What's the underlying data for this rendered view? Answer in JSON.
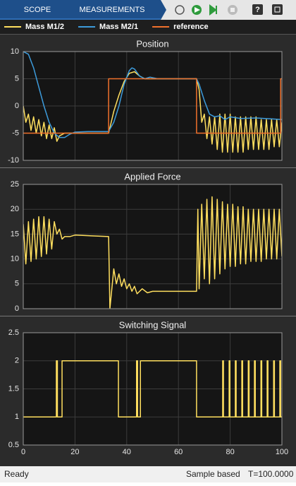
{
  "toolbar": {
    "tabs": [
      "SCOPE",
      "MEASUREMENTS"
    ]
  },
  "status": {
    "left": "Ready",
    "mode": "Sample based",
    "time": "T=100.0000"
  },
  "chart_data": [
    {
      "type": "line",
      "title": "Position",
      "xlim": [
        0,
        100
      ],
      "xticks": [
        0,
        20,
        40,
        60,
        80,
        100
      ],
      "ylim": [
        -10,
        10
      ],
      "yticks": [
        -10,
        -5,
        0,
        5,
        10
      ],
      "grid": true,
      "series": [
        {
          "name": "Mass M1/2",
          "color": "#ffdf5f",
          "x": [
            0,
            1,
            2,
            3,
            4,
            5,
            6,
            7,
            8,
            9,
            10,
            11,
            12,
            13,
            14,
            16,
            33,
            35,
            37,
            39,
            41,
            43,
            45,
            47,
            67,
            68,
            69,
            70,
            71,
            72,
            73,
            74,
            75,
            76,
            77,
            78,
            79,
            80,
            81,
            82,
            83,
            84,
            85,
            86,
            87,
            88,
            89,
            90,
            91,
            92,
            93,
            94,
            95,
            96,
            97,
            98,
            99,
            100
          ],
          "values": [
            0,
            -3,
            -1.5,
            -4.5,
            -2,
            -5,
            -2.5,
            -5.5,
            -3,
            -6,
            -3.5,
            -6,
            -4,
            -6.5,
            -5.5,
            -5,
            -5,
            -1,
            2,
            4.5,
            6,
            6.3,
            5.5,
            5,
            5,
            3,
            -3,
            -1.5,
            -6,
            -2,
            -7,
            -2,
            -8,
            -1.5,
            -8.5,
            -1.5,
            -8.5,
            -1.5,
            -8.5,
            -2,
            -8.5,
            -2,
            -8.5,
            -2,
            -8,
            -2,
            -8,
            -2,
            -8,
            -2.5,
            -8,
            -2.5,
            -8,
            -2.5,
            -7.5,
            -2.5,
            -7.5,
            -3
          ]
        },
        {
          "name": "Mass M2/1",
          "color": "#3d9bdb",
          "x": [
            0,
            2,
            4,
            6,
            8,
            10,
            12,
            14,
            16,
            18,
            20,
            25,
            33,
            35,
            37,
            39,
            41,
            42,
            43,
            45,
            47,
            49,
            52,
            67,
            68,
            70,
            72,
            74,
            76,
            78,
            80,
            84,
            90,
            100
          ],
          "values": [
            10,
            9.5,
            7,
            3.5,
            0,
            -3,
            -5,
            -5.8,
            -5.8,
            -5.2,
            -4.8,
            -4.7,
            -4.7,
            -3,
            0,
            4,
            6.5,
            7,
            6.8,
            5.5,
            5,
            5.3,
            5,
            5,
            4,
            1,
            -1.5,
            -2,
            -1.8,
            -2.5,
            -2,
            -2.3,
            -2.2,
            -2.5
          ]
        },
        {
          "name": "reference",
          "color": "#f0712c",
          "x": [
            0,
            33,
            33,
            67,
            67,
            99.5,
            99.5,
            100
          ],
          "values": [
            -5,
            -5,
            5,
            5,
            -5,
            -5,
            5,
            5
          ]
        }
      ]
    },
    {
      "type": "line",
      "title": "Applied Force",
      "xlim": [
        0,
        100
      ],
      "xticks": [
        0,
        20,
        40,
        60,
        80,
        100
      ],
      "ylim": [
        0,
        25
      ],
      "yticks": [
        0,
        5,
        10,
        15,
        20,
        25
      ],
      "grid": true,
      "series": [
        {
          "color": "#ffdf5f",
          "x": [
            0,
            1,
            2,
            3,
            4,
            5,
            6,
            7,
            8,
            9,
            10,
            11,
            12,
            13,
            14,
            15,
            16,
            18,
            20,
            33,
            33.5,
            35,
            36,
            37,
            38,
            39,
            40,
            41,
            42,
            43,
            44,
            46,
            48,
            50,
            67,
            67.5,
            68,
            69,
            70,
            71,
            72,
            73,
            74,
            75,
            76,
            77,
            78,
            79,
            80,
            81,
            82,
            83,
            84,
            85,
            86,
            87,
            88,
            89,
            90,
            91,
            92,
            93,
            94,
            95,
            96,
            97,
            98,
            99,
            100
          ],
          "values": [
            17,
            9,
            17.5,
            9.5,
            18,
            10,
            18.5,
            10.5,
            18.5,
            11,
            18,
            12,
            17.5,
            15,
            16,
            14,
            14.5,
            14.5,
            14.8,
            14.5,
            0,
            8,
            5,
            7,
            4.5,
            6,
            4,
            5,
            3.5,
            4.5,
            3,
            4,
            3.2,
            3.5,
            3.5,
            20,
            4,
            21,
            6,
            22,
            5,
            22.5,
            6,
            22,
            7,
            21.5,
            8,
            21,
            8.5,
            21,
            8.5,
            20.5,
            9,
            20.5,
            9,
            20,
            9.5,
            20,
            9.5,
            20,
            9.5,
            20,
            10,
            20,
            10,
            20,
            10,
            20,
            10.5
          ]
        }
      ]
    },
    {
      "type": "line",
      "title": "Switching Signal",
      "xlim": [
        0,
        100
      ],
      "xticks": [
        0,
        20,
        40,
        60,
        80,
        100
      ],
      "ylim": [
        0.5,
        2.5
      ],
      "yticks": [
        0.5,
        1,
        1.5,
        2,
        2.5
      ],
      "grid": true,
      "series": [
        {
          "color": "#ffdf5f",
          "x": [
            0,
            12.8,
            12.8,
            13.2,
            13.2,
            15,
            15,
            36.8,
            36.8,
            43.8,
            43.8,
            44.2,
            44.2,
            45.3,
            45.3,
            67,
            67,
            77.1,
            77.1,
            77.4,
            77.4,
            79.6,
            79.6,
            79.9,
            79.9,
            82,
            82,
            82.3,
            82.3,
            84.5,
            84.5,
            84.8,
            84.8,
            87,
            87,
            87.3,
            87.3,
            89.4,
            89.4,
            89.7,
            89.7,
            91.9,
            91.9,
            92.2,
            92.2,
            94.3,
            94.3,
            94.6,
            94.6,
            96.8,
            96.8,
            97.1,
            97.1,
            99.2,
            99.2,
            99.5,
            99.5,
            100
          ],
          "values": [
            1,
            1,
            2,
            2,
            1,
            1,
            2,
            2,
            1,
            1,
            2,
            2,
            1,
            1,
            2,
            2,
            1,
            1,
            2,
            2,
            1,
            1,
            2,
            2,
            1,
            1,
            2,
            2,
            1,
            1,
            2,
            2,
            1,
            1,
            2,
            2,
            1,
            1,
            2,
            2,
            1,
            1,
            2,
            2,
            1,
            1,
            2,
            2,
            1,
            1,
            2,
            2,
            1,
            1,
            2,
            2,
            1,
            1
          ]
        }
      ]
    }
  ]
}
